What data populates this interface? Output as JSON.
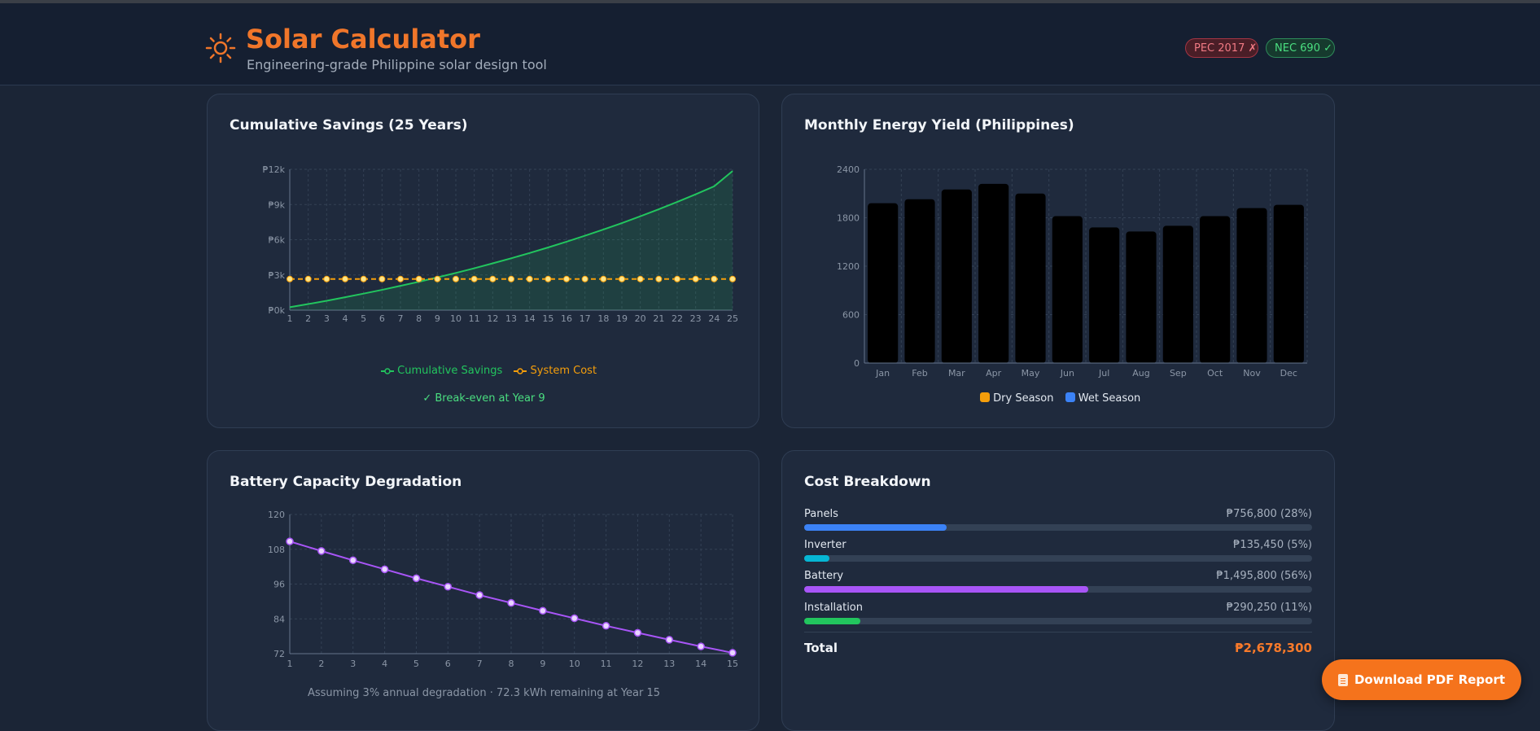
{
  "app": {
    "title": "Solar Calculator",
    "subtitle": "Engineering-grade Philippine solar design tool",
    "badges": [
      {
        "label": "PEC 2017 ✗",
        "status": "fail",
        "color": "#f07a84"
      },
      {
        "label": "NEC 690 ✓",
        "status": "pass",
        "color": "#4ade80"
      }
    ]
  },
  "colors": {
    "accent": "#f0762a",
    "green": "#22c55e",
    "orange": "#f59e0b",
    "purple": "#a855f7",
    "blue": "#3b82f6",
    "cyan": "#06b6d4"
  },
  "savings": {
    "title": "Cumulative Savings (25 Years)",
    "legend": {
      "savings": "Cumulative Savings",
      "cost": "System Cost"
    },
    "breakeven": "✓ Break-even at Year 9",
    "chart_data": {
      "type": "area",
      "x": [
        1,
        2,
        3,
        4,
        5,
        6,
        7,
        8,
        9,
        10,
        11,
        12,
        13,
        14,
        15,
        16,
        17,
        18,
        19,
        20,
        21,
        22,
        23,
        24,
        25
      ],
      "ylim": [
        0,
        12000
      ],
      "yticks": [
        0,
        3000,
        6000,
        9000,
        12000
      ],
      "ytick_labels": [
        "₱0k",
        "₱3k",
        "₱6k",
        "₱9k",
        "₱12k"
      ],
      "series": [
        {
          "name": "Cumulative Savings",
          "values": [
            250,
            520,
            800,
            1100,
            1410,
            1730,
            2070,
            2420,
            2790,
            3170,
            3570,
            3990,
            4420,
            4870,
            5340,
            5830,
            6340,
            6870,
            7420,
            8000,
            8600,
            9220,
            9870,
            10550,
            11850
          ]
        },
        {
          "name": "System Cost",
          "values": [
            2650,
            2650,
            2650,
            2650,
            2650,
            2650,
            2650,
            2650,
            2650,
            2650,
            2650,
            2650,
            2650,
            2650,
            2650,
            2650,
            2650,
            2650,
            2650,
            2650,
            2650,
            2650,
            2650,
            2650,
            2650
          ]
        }
      ]
    }
  },
  "yield": {
    "title": "Monthly Energy Yield (Philippines)",
    "legend": {
      "dry": "Dry Season",
      "wet": "Wet Season"
    },
    "chart_data": {
      "type": "bar",
      "categories": [
        "Jan",
        "Feb",
        "Mar",
        "Apr",
        "May",
        "Jun",
        "Jul",
        "Aug",
        "Sep",
        "Oct",
        "Nov",
        "Dec"
      ],
      "values": [
        1980,
        2030,
        2150,
        2220,
        2100,
        1820,
        1680,
        1630,
        1700,
        1820,
        1920,
        1960
      ],
      "ylim": [
        0,
        2400
      ],
      "yticks": [
        0,
        600,
        1200,
        1800,
        2400
      ],
      "ytick_labels": [
        "0",
        "600",
        "1200",
        "1800",
        "2400"
      ]
    }
  },
  "battery": {
    "title": "Battery Capacity Degradation",
    "note": "Assuming 3% annual degradation · 72.3 kWh remaining at Year 15",
    "chart_data": {
      "type": "line",
      "x": [
        1,
        2,
        3,
        4,
        5,
        6,
        7,
        8,
        9,
        10,
        11,
        12,
        13,
        14,
        15
      ],
      "values": [
        110.7,
        107.4,
        104.2,
        101.1,
        98.0,
        95.1,
        92.2,
        89.5,
        86.8,
        84.2,
        81.6,
        79.2,
        76.8,
        74.5,
        72.3
      ],
      "ylim": [
        72,
        120
      ],
      "yticks": [
        72,
        84,
        96,
        108,
        120
      ],
      "ytick_labels": [
        "72",
        "84",
        "96",
        "108",
        "120"
      ]
    }
  },
  "cost": {
    "title": "Cost Breakdown",
    "items": [
      {
        "name": "Panels",
        "value": "₱756,800 (28%)",
        "fraction": 0.28,
        "color": "#3b82f6"
      },
      {
        "name": "Inverter",
        "value": "₱135,450 (5%)",
        "fraction": 0.05,
        "color": "#06b6d4"
      },
      {
        "name": "Battery",
        "value": "₱1,495,800 (56%)",
        "fraction": 0.56,
        "color": "#a855f7"
      },
      {
        "name": "Installation",
        "value": "₱290,250 (11%)",
        "fraction": 0.11,
        "color": "#22c55e"
      }
    ],
    "total_label": "Total",
    "total_value": "₱2,678,300"
  },
  "download": {
    "label": "Download PDF Report"
  }
}
